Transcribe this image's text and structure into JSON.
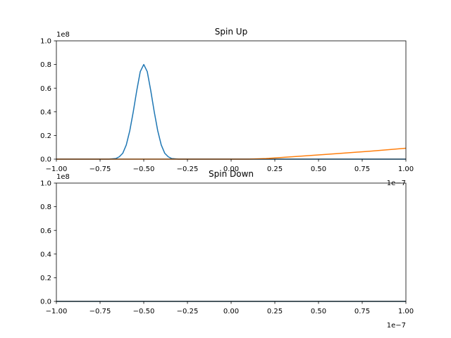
{
  "chart_data": [
    {
      "type": "line",
      "title": "Spin Up",
      "xlim": [
        -1e-07,
        1e-07
      ],
      "ylim": [
        0,
        100000000.0
      ],
      "x_offset_label": "1e−7",
      "y_offset_label": "1e8",
      "x_ticks": [
        -1e-07,
        -7.5e-08,
        -5e-08,
        -2.5e-08,
        0,
        2.5e-08,
        5e-08,
        7.5e-08,
        1e-07
      ],
      "x_tick_labels": [
        "−1.00",
        "−0.75",
        "−0.50",
        "−0.25",
        "0.00",
        "0.25",
        "0.50",
        "0.75",
        "1.00"
      ],
      "y_ticks": [
        0,
        20000000.0,
        40000000.0,
        60000000.0,
        80000000.0,
        100000000.0
      ],
      "y_tick_labels": [
        "0.0",
        "0.2",
        "0.4",
        "0.6",
        "0.8",
        "1.0"
      ],
      "grid": false,
      "series": [
        {
          "color": "#1f77b4",
          "points": [
            [
              -1e-07,
              0
            ],
            [
              -8e-08,
              0
            ],
            [
              -7e-08,
              0
            ],
            [
              -6.6e-08,
              500000.0
            ],
            [
              -6.4e-08,
              2000000.0
            ],
            [
              -6.2e-08,
              5000000.0
            ],
            [
              -6e-08,
              12000000.0
            ],
            [
              -5.8e-08,
              24000000.0
            ],
            [
              -5.6e-08,
              40000000.0
            ],
            [
              -5.4e-08,
              58000000.0
            ],
            [
              -5.2e-08,
              74000000.0
            ],
            [
              -5e-08,
              80000000.0
            ],
            [
              -4.8e-08,
              74000000.0
            ],
            [
              -4.6e-08,
              58000000.0
            ],
            [
              -4.4e-08,
              40000000.0
            ],
            [
              -4.2e-08,
              24000000.0
            ],
            [
              -4e-08,
              12000000.0
            ],
            [
              -3.8e-08,
              5000000.0
            ],
            [
              -3.6e-08,
              2000000.0
            ],
            [
              -3.4e-08,
              500000.0
            ],
            [
              -3e-08,
              0
            ],
            [
              1e-07,
              0
            ]
          ]
        },
        {
          "color": "#ff7f0e",
          "points": [
            [
              -1e-07,
              0
            ],
            [
              1e-08,
              0
            ],
            [
              2e-08,
              500000.0
            ],
            [
              4e-08,
              2500000.0
            ],
            [
              6e-08,
              4600000.0
            ],
            [
              8e-08,
              6800000.0
            ],
            [
              1e-07,
              9200000.0
            ]
          ]
        }
      ]
    },
    {
      "type": "line",
      "title": "Spin Down",
      "xlim": [
        -1e-07,
        1e-07
      ],
      "ylim": [
        0,
        100000000.0
      ],
      "x_offset_label": "1e−7",
      "y_offset_label": "1e8",
      "x_ticks": [
        -1e-07,
        -7.5e-08,
        -5e-08,
        -2.5e-08,
        0,
        2.5e-08,
        5e-08,
        7.5e-08,
        1e-07
      ],
      "x_tick_labels": [
        "−1.00",
        "−0.75",
        "−0.50",
        "−0.25",
        "0.00",
        "0.25",
        "0.50",
        "0.75",
        "1.00"
      ],
      "y_ticks": [
        0,
        20000000.0,
        40000000.0,
        60000000.0,
        80000000.0,
        100000000.0
      ],
      "y_tick_labels": [
        "0.0",
        "0.2",
        "0.4",
        "0.6",
        "0.8",
        "1.0"
      ],
      "grid": false,
      "series": [
        {
          "color": "#ff7f0e",
          "points": [
            [
              -1e-07,
              0
            ],
            [
              1e-07,
              0
            ]
          ]
        },
        {
          "color": "#1f77b4",
          "points": [
            [
              -1e-07,
              0
            ],
            [
              1e-07,
              0
            ]
          ]
        }
      ]
    }
  ]
}
